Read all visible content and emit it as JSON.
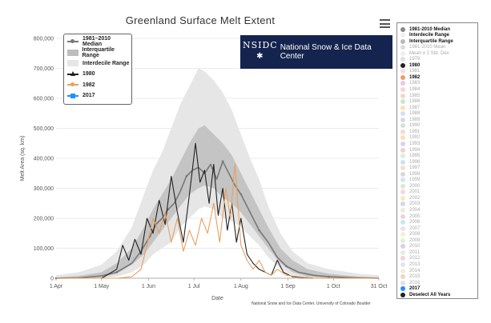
{
  "title": "Greenland Surface Melt Extent",
  "credit": "National Snow and Ice Data Center, University of Colorado Boulder",
  "logo": {
    "mark": "NSIDC",
    "name": "National Snow & Ice Data Center"
  },
  "legend": [
    {
      "label": "1981–2010 Median",
      "kind": "median",
      "color": "#777777"
    },
    {
      "label": "Interquartile Range",
      "kind": "iqr",
      "color": "#bdbdbd"
    },
    {
      "label": "Interdecile Range",
      "kind": "idr",
      "color": "#e6e6e6"
    },
    {
      "label": "1980",
      "kind": "tri",
      "color": "#222222"
    },
    {
      "label": "1982",
      "kind": "dot",
      "color": "#e8a060"
    },
    {
      "label": "2017",
      "kind": "sq",
      "color": "#1e90ff"
    }
  ],
  "year_panel": {
    "top_items": [
      {
        "label": "1981-2010 Median",
        "color": "#888888",
        "style": "bold"
      },
      {
        "label": "Interdecile Range",
        "color": "#eeeeee",
        "style": "bold"
      },
      {
        "label": "Interquartile Range",
        "color": "#bbbbbb",
        "style": "bold"
      },
      {
        "label": "1981-2010 Mean",
        "color": "#dddddd",
        "style": "faint"
      },
      {
        "label": "Mean ± 2 Std. Dev",
        "color": "#eeeeee",
        "style": "faint"
      }
    ],
    "years": [
      {
        "label": "1979",
        "color": "#e0e0e0",
        "style": "faint"
      },
      {
        "label": "1980",
        "color": "#222222",
        "style": "bold"
      },
      {
        "label": "1981",
        "color": "#ffd9d9",
        "style": "faint"
      },
      {
        "label": "1982",
        "color": "#e8a060",
        "style": "bold"
      },
      {
        "label": "1983",
        "color": "#e6c6f0",
        "style": "faint"
      },
      {
        "label": "1984",
        "color": "#ffd0e0",
        "style": "faint"
      },
      {
        "label": "1985",
        "color": "#f3d8c8",
        "style": "faint"
      },
      {
        "label": "1986",
        "color": "#cce6cc",
        "style": "faint"
      },
      {
        "label": "1987",
        "color": "#ffe0b0",
        "style": "faint"
      },
      {
        "label": "1988",
        "color": "#d0e4f4",
        "style": "faint"
      },
      {
        "label": "1989",
        "color": "#d8d8f0",
        "style": "faint"
      },
      {
        "label": "1990",
        "color": "#cfe8cf",
        "style": "faint"
      },
      {
        "label": "1991",
        "color": "#f8d8d8",
        "style": "faint"
      },
      {
        "label": "1992",
        "color": "#f8e0b8",
        "style": "faint"
      },
      {
        "label": "1993",
        "color": "#e0d0f0",
        "style": "faint"
      },
      {
        "label": "1994",
        "color": "#f0d0d0",
        "style": "faint"
      },
      {
        "label": "1995",
        "color": "#d8f0d8",
        "style": "faint"
      },
      {
        "label": "1996",
        "color": "#d0e0f8",
        "style": "faint"
      },
      {
        "label": "1997",
        "color": "#f0e0d0",
        "style": "faint"
      },
      {
        "label": "1998",
        "color": "#d8d8d8",
        "style": "faint"
      },
      {
        "label": "1999",
        "color": "#d0e8f0",
        "style": "faint"
      },
      {
        "label": "2000",
        "color": "#e0e8c8",
        "style": "faint"
      },
      {
        "label": "2001",
        "color": "#f0d8e8",
        "style": "faint"
      },
      {
        "label": "2002",
        "color": "#f8e8c0",
        "style": "faint"
      },
      {
        "label": "2003",
        "color": "#d0d8f8",
        "style": "faint"
      },
      {
        "label": "2004",
        "color": "#e8f0d0",
        "style": "faint"
      },
      {
        "label": "2005",
        "color": "#f0d0e0",
        "style": "faint"
      },
      {
        "label": "2006",
        "color": "#c8e8e8",
        "style": "faint"
      },
      {
        "label": "2007",
        "color": "#e8e0f8",
        "style": "faint"
      },
      {
        "label": "2008",
        "color": "#f8f0c8",
        "style": "faint"
      },
      {
        "label": "2009",
        "color": "#e0f0e0",
        "style": "faint"
      },
      {
        "label": "2010",
        "color": "#d8d0e8",
        "style": "faint"
      },
      {
        "label": "2011",
        "color": "#f0e8e0",
        "style": "faint"
      },
      {
        "label": "2012",
        "color": "#f8d0d8",
        "style": "faint"
      },
      {
        "label": "2013",
        "color": "#d8e8f8",
        "style": "faint"
      },
      {
        "label": "2014",
        "color": "#f0f0d0",
        "style": "faint"
      },
      {
        "label": "2015",
        "color": "#e8d8c8",
        "style": "faint"
      },
      {
        "label": "2016",
        "color": "#e0e0f0",
        "style": "faint"
      },
      {
        "label": "2017",
        "color": "#1e90ff",
        "style": "bold"
      }
    ],
    "deselect_label": "Deselect All Years"
  },
  "chart_data": {
    "type": "line",
    "title": "Greenland Surface Melt Extent",
    "xlabel": "Date",
    "ylabel": "Melt Area (sq. km)",
    "ylim": [
      0,
      800000
    ],
    "yticks": [
      "0",
      "100,000",
      "200,000",
      "300,000",
      "400,000",
      "500,000",
      "600,000",
      "700,000",
      "800,000"
    ],
    "xlim": [
      0,
      213
    ],
    "xticks": [
      {
        "day": 0,
        "label": "1 Apr"
      },
      {
        "day": 30,
        "label": "1 May"
      },
      {
        "day": 61,
        "label": "1 Jun"
      },
      {
        "day": 91,
        "label": "1 Jul"
      },
      {
        "day": 122,
        "label": "1 Aug"
      },
      {
        "day": 153,
        "label": "1 Sep"
      },
      {
        "day": 183,
        "label": "1 Oct"
      },
      {
        "day": 213,
        "label": "31 Oct"
      }
    ],
    "grid": true,
    "legend_position": "top-left",
    "bands": {
      "interdecile": {
        "days": [
          0,
          15,
          30,
          40,
          50,
          58,
          64,
          70,
          76,
          82,
          88,
          94,
          98,
          104,
          110,
          116,
          122,
          128,
          134,
          140,
          148,
          156,
          166,
          180,
          200,
          213
        ],
        "low": [
          0,
          0,
          0,
          5000,
          20000,
          45000,
          80000,
          100000,
          120000,
          170000,
          200000,
          230000,
          240000,
          230000,
          200000,
          190000,
          170000,
          140000,
          110000,
          70000,
          30000,
          10000,
          2000,
          0,
          0,
          0
        ],
        "high": [
          10000,
          20000,
          45000,
          90000,
          170000,
          280000,
          360000,
          420000,
          500000,
          580000,
          640000,
          700000,
          690000,
          660000,
          620000,
          560000,
          480000,
          400000,
          330000,
          240000,
          150000,
          90000,
          50000,
          30000,
          15000,
          10000
        ]
      },
      "interquartile": {
        "days": [
          0,
          15,
          30,
          40,
          50,
          58,
          64,
          70,
          76,
          82,
          88,
          94,
          98,
          104,
          110,
          116,
          122,
          128,
          134,
          140,
          148,
          156,
          166,
          180,
          200,
          213
        ],
        "low": [
          0,
          0,
          2000,
          15000,
          45000,
          80000,
          120000,
          160000,
          200000,
          240000,
          280000,
          300000,
          310000,
          300000,
          270000,
          250000,
          220000,
          180000,
          140000,
          100000,
          50000,
          20000,
          5000,
          1000,
          0,
          0
        ],
        "high": [
          3000,
          8000,
          20000,
          50000,
          100000,
          170000,
          230000,
          280000,
          330000,
          390000,
          450000,
          500000,
          510000,
          480000,
          450000,
          410000,
          350000,
          290000,
          230000,
          170000,
          100000,
          60000,
          30000,
          15000,
          5000,
          3000
        ]
      }
    },
    "series": [
      {
        "name": "1981–2010 Median",
        "color": "#777777",
        "x": [
          0,
          15,
          30,
          40,
          50,
          56,
          62,
          66,
          70,
          74,
          78,
          82,
          86,
          90,
          94,
          98,
          102,
          106,
          110,
          114,
          118,
          122,
          126,
          130,
          134,
          140,
          146,
          152,
          160,
          170,
          180,
          195,
          213
        ],
        "y": [
          0,
          1000,
          8000,
          20000,
          50000,
          90000,
          140000,
          180000,
          200000,
          230000,
          250000,
          290000,
          340000,
          360000,
          370000,
          350000,
          380000,
          330000,
          390000,
          350000,
          310000,
          280000,
          240000,
          200000,
          160000,
          120000,
          70000,
          40000,
          20000,
          10000,
          5000,
          2000,
          0
        ]
      },
      {
        "name": "1980",
        "color": "#222222",
        "x": [
          0,
          30,
          40,
          44,
          48,
          52,
          56,
          60,
          64,
          68,
          72,
          76,
          80,
          84,
          88,
          92,
          95,
          98,
          101,
          104,
          107,
          110,
          113,
          116,
          119,
          122,
          126,
          130,
          134,
          138,
          142,
          146,
          150,
          156,
          170,
          213
        ],
        "y": [
          0,
          0,
          30000,
          110000,
          60000,
          130000,
          80000,
          200000,
          150000,
          260000,
          180000,
          340000,
          220000,
          120000,
          280000,
          450000,
          320000,
          360000,
          250000,
          380000,
          210000,
          300000,
          160000,
          250000,
          120000,
          200000,
          80000,
          50000,
          30000,
          20000,
          10000,
          60000,
          20000,
          5000,
          0,
          0
        ]
      },
      {
        "name": "1982",
        "color": "#e8a060",
        "x": [
          0,
          40,
          50,
          56,
          60,
          64,
          68,
          72,
          76,
          80,
          84,
          88,
          92,
          96,
          100,
          104,
          108,
          112,
          115,
          118,
          122,
          126,
          130,
          134,
          138,
          142,
          146,
          152,
          160,
          170,
          213
        ],
        "y": [
          0,
          0,
          5000,
          30000,
          110000,
          200000,
          150000,
          220000,
          120000,
          200000,
          90000,
          160000,
          110000,
          200000,
          150000,
          250000,
          120000,
          300000,
          200000,
          380000,
          110000,
          60000,
          30000,
          60000,
          20000,
          10000,
          30000,
          10000,
          5000,
          0,
          0
        ]
      }
    ]
  }
}
